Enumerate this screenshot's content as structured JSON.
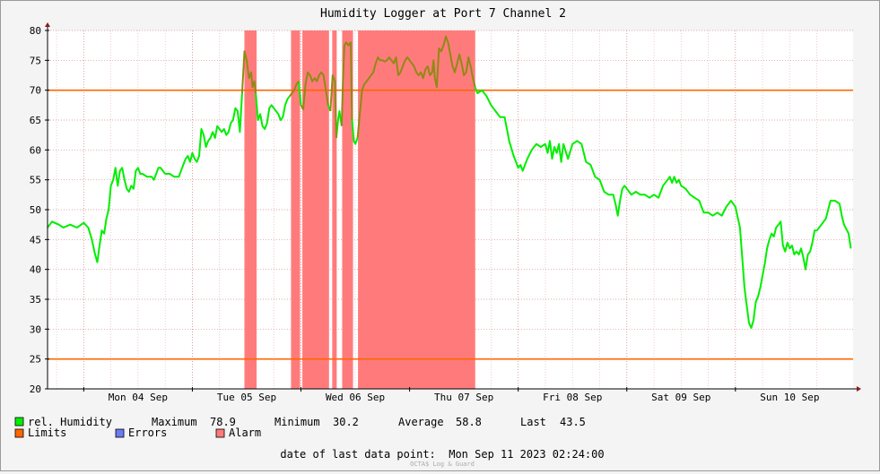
{
  "chart_data": {
    "type": "line",
    "title": "Humidity Logger at Port 7 Channel 2",
    "ylim": [
      20,
      80
    ],
    "y_ticks": [
      20,
      25,
      30,
      35,
      40,
      45,
      50,
      55,
      60,
      65,
      70,
      75,
      80
    ],
    "x_range_hours": [
      0,
      168
    ],
    "x_ticks": [
      {
        "hour": 0,
        "label": "Mon 04 Sep"
      },
      {
        "hour": 24,
        "label": "Tue 05 Sep"
      },
      {
        "hour": 48,
        "label": "Wed 06 Sep"
      },
      {
        "hour": 72,
        "label": "Thu 07 Sep"
      },
      {
        "hour": 96,
        "label": "Fri 08 Sep"
      },
      {
        "hour": 120,
        "label": "Sat 09 Sep"
      },
      {
        "hour": 144,
        "label": "Sun 10 Sep"
      }
    ],
    "limits": [
      25,
      70
    ],
    "alarm_ranges": [
      [
        35.5,
        38.2
      ],
      [
        45.8,
        47.8
      ],
      [
        48.3,
        54.2
      ],
      [
        54.9,
        55.9
      ],
      [
        57.1,
        59.5
      ],
      [
        60.6,
        86.5
      ]
    ],
    "series": [
      {
        "name": "rel. Humidity",
        "color": "#00ee00",
        "points": [
          [
            -8.0,
            47.0
          ],
          [
            -7.0,
            48.0
          ],
          [
            -5.5,
            47.5
          ],
          [
            -4.5,
            47.0
          ],
          [
            -3.0,
            47.5
          ],
          [
            -1.5,
            47.0
          ],
          [
            0.0,
            47.8
          ],
          [
            1.0,
            47.0
          ],
          [
            1.8,
            45.0
          ],
          [
            2.5,
            42.5
          ],
          [
            3.0,
            41.2
          ],
          [
            3.5,
            44.0
          ],
          [
            4.0,
            46.5
          ],
          [
            4.5,
            46.0
          ],
          [
            5.0,
            48.5
          ],
          [
            5.5,
            50.0
          ],
          [
            6.0,
            54.0
          ],
          [
            6.5,
            55.0
          ],
          [
            7.0,
            57.0
          ],
          [
            7.5,
            54.0
          ],
          [
            8.0,
            56.5
          ],
          [
            8.5,
            57.0
          ],
          [
            9.0,
            55.0
          ],
          [
            9.5,
            53.5
          ],
          [
            10.0,
            53.0
          ],
          [
            10.5,
            54.0
          ],
          [
            11.0,
            53.5
          ],
          [
            11.5,
            56.5
          ],
          [
            12.0,
            57.0
          ],
          [
            12.5,
            56.0
          ],
          [
            13.0,
            56.0
          ],
          [
            14.0,
            55.5
          ],
          [
            15.0,
            55.5
          ],
          [
            15.5,
            55.0
          ],
          [
            16.0,
            56.0
          ],
          [
            16.5,
            57.0
          ],
          [
            17.0,
            57.0
          ],
          [
            17.5,
            56.5
          ],
          [
            18.0,
            56.0
          ],
          [
            19.0,
            56.0
          ],
          [
            20.0,
            55.5
          ],
          [
            21.0,
            55.5
          ],
          [
            21.5,
            56.5
          ],
          [
            22.0,
            57.5
          ],
          [
            22.5,
            58.5
          ],
          [
            23.0,
            59.0
          ],
          [
            23.5,
            58.0
          ],
          [
            24.0,
            59.5
          ],
          [
            24.5,
            58.5
          ],
          [
            25.0,
            58.0
          ],
          [
            25.5,
            59.0
          ],
          [
            26.0,
            63.5
          ],
          [
            26.5,
            62.5
          ],
          [
            27.0,
            60.5
          ],
          [
            27.5,
            61.5
          ],
          [
            28.0,
            62.0
          ],
          [
            28.5,
            63.0
          ],
          [
            29.0,
            62.0
          ],
          [
            29.5,
            64.0
          ],
          [
            30.0,
            63.5
          ],
          [
            30.5,
            63.0
          ],
          [
            31.0,
            63.5
          ],
          [
            31.5,
            62.5
          ],
          [
            32.0,
            63.0
          ],
          [
            32.5,
            64.5
          ],
          [
            33.0,
            65.0
          ],
          [
            33.5,
            67.0
          ],
          [
            34.0,
            66.5
          ],
          [
            34.5,
            63.0
          ],
          [
            35.0,
            69.5
          ],
          [
            35.5,
            76.5
          ],
          [
            36.0,
            75.0
          ],
          [
            36.5,
            72.0
          ],
          [
            37.0,
            73.0
          ],
          [
            37.3,
            70.5
          ],
          [
            37.7,
            71.5
          ],
          [
            38.0,
            69.5
          ],
          [
            38.5,
            65.0
          ],
          [
            39.0,
            66.0
          ],
          [
            39.5,
            64.0
          ],
          [
            40.0,
            63.5
          ],
          [
            40.5,
            64.5
          ],
          [
            41.0,
            67.0
          ],
          [
            41.5,
            67.5
          ],
          [
            42.0,
            67.0
          ],
          [
            42.5,
            66.5
          ],
          [
            43.0,
            66.0
          ],
          [
            43.5,
            65.0
          ],
          [
            44.0,
            65.5
          ],
          [
            44.5,
            67.5
          ],
          [
            45.0,
            68.5
          ],
          [
            45.5,
            69.0
          ],
          [
            46.0,
            69.5
          ],
          [
            46.5,
            70.0
          ],
          [
            47.0,
            71.0
          ],
          [
            47.5,
            71.5
          ],
          [
            48.0,
            67.5
          ],
          [
            48.5,
            66.8
          ],
          [
            49.0,
            71.0
          ],
          [
            49.5,
            73.0
          ],
          [
            50.0,
            72.5
          ],
          [
            50.5,
            71.5
          ],
          [
            51.0,
            72.0
          ],
          [
            51.5,
            71.5
          ],
          [
            52.0,
            72.5
          ],
          [
            52.5,
            73.0
          ],
          [
            53.0,
            72.5
          ],
          [
            53.5,
            70.0
          ],
          [
            54.0,
            67.5
          ],
          [
            54.5,
            66.5
          ],
          [
            55.0,
            72.5
          ],
          [
            55.5,
            71.5
          ],
          [
            55.8,
            62.0
          ],
          [
            56.2,
            65.0
          ],
          [
            56.5,
            66.5
          ],
          [
            57.0,
            64.0
          ],
          [
            57.3,
            72.0
          ],
          [
            57.6,
            77.5
          ],
          [
            58.0,
            78.0
          ],
          [
            58.5,
            77.5
          ],
          [
            59.0,
            78.0
          ],
          [
            59.3,
            65.0
          ],
          [
            59.7,
            61.5
          ],
          [
            60.0,
            61.0
          ],
          [
            60.5,
            62.0
          ],
          [
            61.0,
            66.0
          ],
          [
            61.5,
            70.0
          ],
          [
            62.0,
            71.0
          ],
          [
            62.5,
            71.5
          ],
          [
            63.0,
            72.0
          ],
          [
            63.5,
            72.5
          ],
          [
            64.0,
            73.0
          ],
          [
            64.5,
            74.5
          ],
          [
            65.0,
            75.5
          ],
          [
            65.5,
            75.0
          ],
          [
            66.0,
            75.0
          ],
          [
            66.5,
            74.8
          ],
          [
            67.0,
            75.0
          ],
          [
            67.5,
            75.5
          ],
          [
            68.0,
            75.0
          ],
          [
            68.5,
            74.5
          ],
          [
            69.0,
            75.5
          ],
          [
            69.5,
            72.5
          ],
          [
            70.0,
            73.0
          ],
          [
            70.5,
            74.0
          ],
          [
            71.0,
            75.0
          ],
          [
            71.5,
            75.5
          ],
          [
            72.0,
            75.0
          ],
          [
            72.5,
            74.5
          ],
          [
            73.0,
            74.0
          ],
          [
            73.5,
            73.0
          ],
          [
            74.0,
            72.5
          ],
          [
            74.5,
            73.0
          ],
          [
            75.0,
            72.0
          ],
          [
            75.5,
            73.5
          ],
          [
            76.0,
            74.0
          ],
          [
            76.5,
            72.5
          ],
          [
            77.0,
            73.0
          ],
          [
            77.3,
            75.0
          ],
          [
            77.6,
            72.0
          ],
          [
            78.0,
            70.5
          ],
          [
            78.5,
            77.0
          ],
          [
            79.0,
            76.5
          ],
          [
            79.5,
            77.5
          ],
          [
            80.0,
            79.0
          ],
          [
            80.5,
            78.0
          ],
          [
            81.0,
            76.0
          ],
          [
            81.5,
            74.0
          ],
          [
            82.0,
            73.0
          ],
          [
            82.5,
            74.5
          ],
          [
            83.0,
            76.0
          ],
          [
            83.5,
            74.5
          ],
          [
            84.0,
            72.5
          ],
          [
            84.5,
            73.0
          ],
          [
            85.0,
            75.5
          ],
          [
            85.5,
            74.0
          ],
          [
            86.0,
            72.0
          ],
          [
            86.5,
            70.5
          ],
          [
            87.0,
            69.5
          ],
          [
            88.0,
            70.0
          ],
          [
            89.0,
            69.0
          ],
          [
            90.0,
            67.5
          ],
          [
            91.0,
            66.5
          ],
          [
            92.0,
            65.5
          ],
          [
            93.0,
            65.5
          ],
          [
            93.5,
            63.5
          ],
          [
            94.0,
            61.5
          ],
          [
            95.0,
            59.0
          ],
          [
            96.0,
            57.0
          ],
          [
            96.5,
            57.5
          ],
          [
            97.0,
            56.5
          ],
          [
            98.0,
            58.5
          ],
          [
            99.0,
            60.0
          ],
          [
            100.0,
            61.0
          ],
          [
            101.0,
            60.5
          ],
          [
            102.0,
            61.0
          ],
          [
            102.5,
            59.5
          ],
          [
            103.0,
            61.5
          ],
          [
            103.5,
            58.5
          ],
          [
            104.0,
            60.5
          ],
          [
            104.5,
            59.5
          ],
          [
            105.0,
            61.0
          ],
          [
            105.5,
            58.0
          ],
          [
            106.0,
            61.0
          ],
          [
            107.0,
            58.5
          ],
          [
            108.0,
            61.0
          ],
          [
            109.0,
            61.5
          ],
          [
            110.0,
            61.0
          ],
          [
            110.5,
            59.5
          ],
          [
            111.0,
            58.0
          ],
          [
            112.0,
            57.5
          ],
          [
            113.0,
            55.5
          ],
          [
            114.0,
            55.0
          ],
          [
            115.0,
            53.0
          ],
          [
            116.0,
            52.5
          ],
          [
            117.0,
            52.5
          ],
          [
            117.5,
            51.0
          ],
          [
            118.0,
            49.0
          ],
          [
            118.5,
            51.5
          ],
          [
            119.0,
            53.5
          ],
          [
            119.5,
            54.0
          ],
          [
            120.0,
            53.5
          ],
          [
            121.0,
            52.5
          ],
          [
            122.0,
            53.0
          ],
          [
            123.0,
            52.5
          ],
          [
            124.0,
            52.5
          ],
          [
            125.0,
            52.0
          ],
          [
            126.0,
            52.5
          ],
          [
            127.0,
            52.0
          ],
          [
            128.0,
            54.0
          ],
          [
            129.0,
            55.0
          ],
          [
            129.5,
            55.5
          ],
          [
            130.0,
            54.5
          ],
          [
            130.5,
            55.5
          ],
          [
            131.0,
            54.5
          ],
          [
            131.5,
            55.0
          ],
          [
            132.0,
            54.0
          ],
          [
            133.0,
            53.5
          ],
          [
            134.0,
            52.5
          ],
          [
            135.0,
            52.0
          ],
          [
            136.0,
            51.5
          ],
          [
            136.5,
            50.5
          ],
          [
            137.0,
            49.5
          ],
          [
            138.0,
            49.5
          ],
          [
            139.0,
            49.0
          ],
          [
            140.0,
            49.5
          ],
          [
            141.0,
            49.0
          ],
          [
            142.0,
            50.5
          ],
          [
            143.0,
            51.5
          ],
          [
            144.0,
            50.5
          ],
          [
            145.0,
            47.0
          ],
          [
            145.5,
            42.0
          ],
          [
            146.0,
            37.0
          ],
          [
            146.5,
            34.0
          ],
          [
            147.0,
            31.0
          ],
          [
            147.5,
            30.2
          ],
          [
            148.0,
            31.5
          ],
          [
            148.5,
            34.5
          ],
          [
            149.0,
            35.5
          ],
          [
            149.5,
            37.0
          ],
          [
            150.0,
            39.0
          ],
          [
            150.5,
            41.0
          ],
          [
            151.0,
            43.5
          ],
          [
            151.5,
            45.0
          ],
          [
            152.0,
            46.0
          ],
          [
            152.5,
            45.5
          ],
          [
            153.0,
            47.0
          ],
          [
            153.5,
            47.5
          ],
          [
            154.0,
            48.0
          ],
          [
            154.5,
            44.0
          ],
          [
            155.0,
            43.0
          ],
          [
            155.5,
            44.5
          ],
          [
            156.0,
            43.5
          ],
          [
            156.5,
            44.0
          ],
          [
            157.0,
            42.5
          ],
          [
            157.5,
            43.0
          ],
          [
            158.0,
            42.5
          ],
          [
            158.5,
            43.5
          ],
          [
            159.0,
            42.0
          ],
          [
            159.5,
            40.0
          ],
          [
            160.0,
            42.5
          ],
          [
            160.5,
            43.0
          ],
          [
            161.0,
            44.5
          ],
          [
            161.5,
            46.5
          ],
          [
            162.0,
            46.5
          ],
          [
            163.0,
            47.5
          ],
          [
            164.0,
            48.5
          ],
          [
            165.0,
            51.5
          ],
          [
            166.0,
            51.5
          ],
          [
            167.0,
            51.0
          ],
          [
            167.5,
            49.0
          ],
          [
            168.0,
            47.5
          ],
          [
            169.0,
            46.0
          ],
          [
            169.5,
            43.5
          ]
        ]
      }
    ],
    "legend": [
      {
        "name": "rel. Humidity",
        "color": "#00ee00"
      },
      {
        "name": "Limits",
        "color": "#ff6600"
      },
      {
        "name": "Errors",
        "color": "#6b7cf0"
      },
      {
        "name": "Alarm",
        "color": "#ff7b7b"
      }
    ],
    "stats": {
      "maximum_label": "Maximum",
      "maximum": "78.9",
      "minimum_label": "Minimum",
      "minimum": "30.2",
      "average_label": "Average",
      "average": "58.8",
      "last_label": "Last",
      "last": "43.5"
    },
    "footer": "date of last data point:  Mon Sep 11 2023 02:24:00",
    "credit": "OCTA$ Log & Guard"
  }
}
